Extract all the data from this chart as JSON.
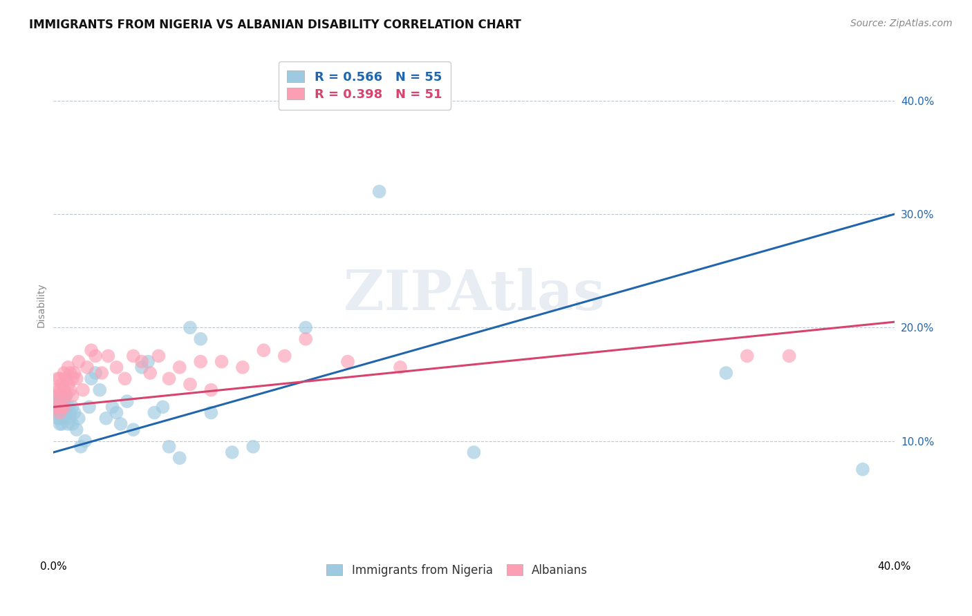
{
  "title": "IMMIGRANTS FROM NIGERIA VS ALBANIAN DISABILITY CORRELATION CHART",
  "source": "Source: ZipAtlas.com",
  "ylabel": "Disability",
  "xlim": [
    0.0,
    0.4
  ],
  "ylim": [
    0.0,
    0.44
  ],
  "yticks": [
    0.1,
    0.2,
    0.3,
    0.4
  ],
  "ytick_labels": [
    "10.0%",
    "20.0%",
    "30.0%",
    "40.0%"
  ],
  "xticks": [
    0.0,
    0.1,
    0.2,
    0.3,
    0.4
  ],
  "xtick_labels": [
    "0.0%",
    "",
    "",
    "",
    "40.0%"
  ],
  "r_nigeria": 0.566,
  "n_nigeria": 55,
  "r_albanian": 0.398,
  "n_albanian": 51,
  "legend_label_nigeria": "Immigrants from Nigeria",
  "legend_label_albanian": "Albanians",
  "color_nigeria": "#9ecae1",
  "color_albanian": "#fc9fb5",
  "line_color_nigeria": "#2166ac",
  "line_color_albanian": "#d6446e",
  "watermark": "ZIPAtlas",
  "background_color": "#ffffff",
  "nigeria_line_start_y": 0.09,
  "nigeria_line_end_y": 0.3,
  "albanian_line_start_y": 0.13,
  "albanian_line_end_y": 0.205,
  "nigeria_x": [
    0.001,
    0.001,
    0.002,
    0.002,
    0.002,
    0.002,
    0.003,
    0.003,
    0.003,
    0.003,
    0.004,
    0.004,
    0.004,
    0.005,
    0.005,
    0.005,
    0.006,
    0.006,
    0.007,
    0.007,
    0.008,
    0.008,
    0.009,
    0.009,
    0.01,
    0.011,
    0.012,
    0.013,
    0.015,
    0.017,
    0.018,
    0.02,
    0.022,
    0.025,
    0.028,
    0.03,
    0.032,
    0.035,
    0.038,
    0.042,
    0.045,
    0.048,
    0.052,
    0.055,
    0.06,
    0.065,
    0.07,
    0.075,
    0.085,
    0.095,
    0.12,
    0.155,
    0.2,
    0.32,
    0.385
  ],
  "nigeria_y": [
    0.13,
    0.125,
    0.135,
    0.12,
    0.14,
    0.125,
    0.13,
    0.115,
    0.135,
    0.12,
    0.125,
    0.14,
    0.115,
    0.13,
    0.12,
    0.135,
    0.125,
    0.14,
    0.13,
    0.115,
    0.125,
    0.12,
    0.115,
    0.13,
    0.125,
    0.11,
    0.12,
    0.095,
    0.1,
    0.13,
    0.155,
    0.16,
    0.145,
    0.12,
    0.13,
    0.125,
    0.115,
    0.135,
    0.11,
    0.165,
    0.17,
    0.125,
    0.13,
    0.095,
    0.085,
    0.2,
    0.19,
    0.125,
    0.09,
    0.095,
    0.2,
    0.32,
    0.09,
    0.16,
    0.075
  ],
  "albanian_x": [
    0.001,
    0.001,
    0.002,
    0.002,
    0.002,
    0.003,
    0.003,
    0.003,
    0.004,
    0.004,
    0.004,
    0.005,
    0.005,
    0.005,
    0.006,
    0.006,
    0.007,
    0.007,
    0.008,
    0.008,
    0.009,
    0.009,
    0.01,
    0.011,
    0.012,
    0.014,
    0.016,
    0.018,
    0.02,
    0.023,
    0.026,
    0.03,
    0.034,
    0.038,
    0.042,
    0.046,
    0.05,
    0.055,
    0.06,
    0.065,
    0.07,
    0.075,
    0.08,
    0.09,
    0.1,
    0.11,
    0.12,
    0.14,
    0.165,
    0.33,
    0.35
  ],
  "albanian_y": [
    0.145,
    0.13,
    0.155,
    0.14,
    0.13,
    0.155,
    0.145,
    0.125,
    0.15,
    0.14,
    0.13,
    0.16,
    0.145,
    0.13,
    0.155,
    0.14,
    0.15,
    0.165,
    0.145,
    0.16,
    0.155,
    0.14,
    0.16,
    0.155,
    0.17,
    0.145,
    0.165,
    0.18,
    0.175,
    0.16,
    0.175,
    0.165,
    0.155,
    0.175,
    0.17,
    0.16,
    0.175,
    0.155,
    0.165,
    0.15,
    0.17,
    0.145,
    0.17,
    0.165,
    0.18,
    0.175,
    0.19,
    0.17,
    0.165,
    0.175,
    0.175
  ]
}
